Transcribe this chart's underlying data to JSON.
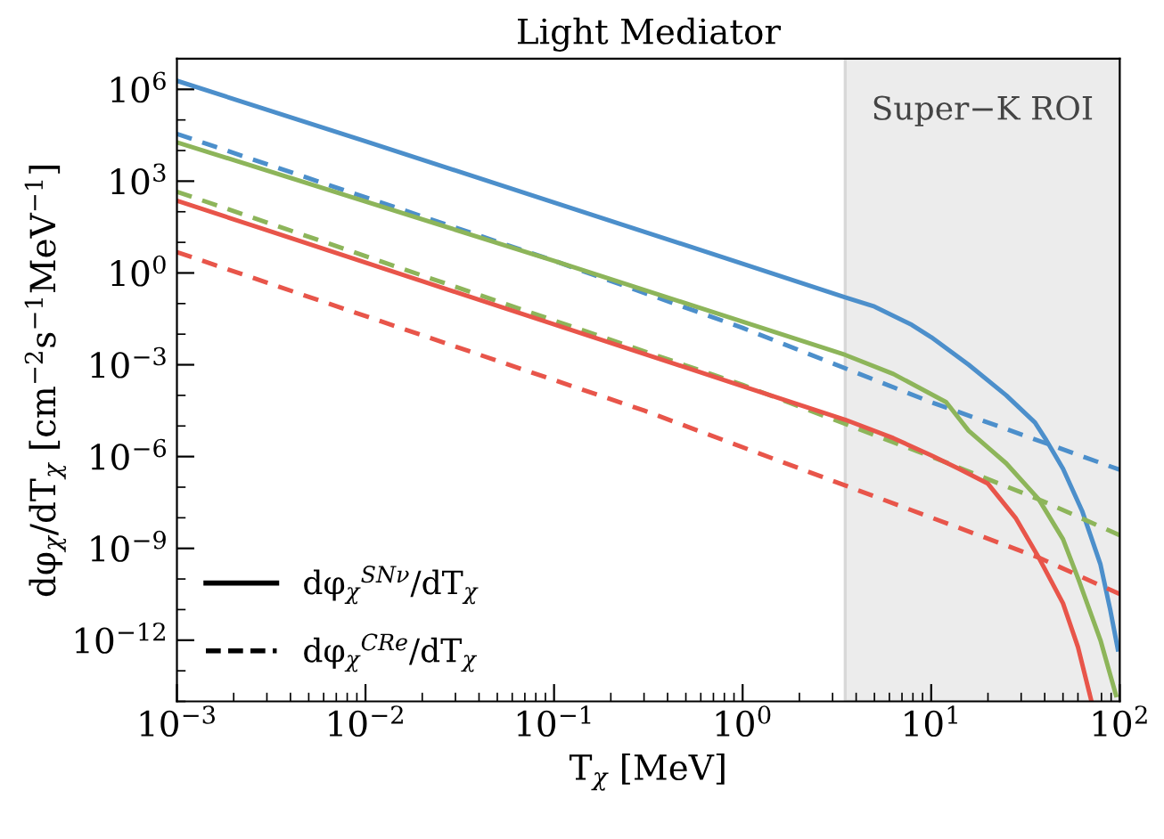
{
  "chart_data": {
    "type": "line",
    "title": "Light Mediator",
    "xlabel": "T$_{χ}$ [MeV]",
    "ylabel": "dφ$_{χ}$/dT$_{χ}$ [cm$^{−2}$s$^{−1}$MeV$^{−1}$]",
    "log": "xy",
    "xlim": [
      0.001,
      100
    ],
    "ylim": [
      1e-14,
      10000000.0
    ],
    "xticks": [
      {
        "value": 0.001,
        "label": "10$^{−3}$"
      },
      {
        "value": 0.01,
        "label": "10$^{−2}$"
      },
      {
        "value": 0.1,
        "label": "10$^{−1}$"
      },
      {
        "value": 1,
        "label": "10$^{0}$"
      },
      {
        "value": 10,
        "label": "10$^{1}$"
      },
      {
        "value": 100,
        "label": "10$^{2}$"
      }
    ],
    "yticks": [
      {
        "value": 1e-12,
        "label": "10$^{−12}$"
      },
      {
        "value": 1e-09,
        "label": "10$^{−9}$"
      },
      {
        "value": 1e-06,
        "label": "10$^{−6}$"
      },
      {
        "value": 0.001,
        "label": "10$^{−3}$"
      },
      {
        "value": 1,
        "label": "10$^{0}$"
      },
      {
        "value": 1000,
        "label": "10$^{3}$"
      },
      {
        "value": 1000000.0,
        "label": "10$^{6}$"
      }
    ],
    "grid": false,
    "marker": "none",
    "bands": [
      {
        "axis": "x",
        "from": 3.5,
        "to": 100,
        "label": "Super−K ROI",
        "color": "#ececec"
      }
    ],
    "annotations": [
      "dφ$_{χ}$$^{SNν}$/dT$_{χ}$",
      "dφ$_{χ}$$^{CRe}$/dT$_{χ}$"
    ],
    "series": [
      {
        "color": "#4c8fcb",
        "line_style": "solid",
        "x": [
          0.001,
          0.01,
          0.1,
          1,
          3.5,
          5,
          7.9,
          10,
          15.8,
          25,
          35.5,
          40.7,
          50,
          63.1,
          79,
          89,
          97.7
        ],
        "values": [
          1900000.0,
          20000.0,
          200,
          2,
          0.16,
          0.08,
          0.02,
          0.008,
          0.001,
          0.0001,
          1.3e-05,
          3.5e-06,
          4e-07,
          1.7e-08,
          3e-10,
          1e-11,
          5e-13
        ]
      },
      {
        "color": "#4c8fcb",
        "line_style": "dashed",
        "x": [
          0.001,
          0.1,
          1,
          10,
          100
        ],
        "values": [
          35000,
          2.5,
          0.016,
          6e-05,
          3.7e-07
        ]
      },
      {
        "color": "#8db55a",
        "line_style": "solid",
        "x": [
          0.001,
          0.1,
          3.5,
          6.3,
          12,
          15.8,
          25,
          37.2,
          50,
          60.3,
          79,
          95.5
        ],
        "values": [
          18600,
          2.5,
          0.0021,
          0.0005,
          6e-05,
          7e-06,
          6e-07,
          4e-08,
          2e-09,
          1e-10,
          1e-12,
          1.6e-14
        ]
      },
      {
        "color": "#8db55a",
        "line_style": "dashed",
        "x": [
          0.001,
          1,
          10,
          37.2,
          100
        ],
        "values": [
          450,
          0.00022,
          1e-06,
          4e-08,
          2.7e-09
        ]
      },
      {
        "color": "#e8554a",
        "line_style": "solid",
        "x": [
          0.001,
          1,
          3.5,
          6.3,
          10,
          14,
          20,
          28,
          37.2,
          50,
          60,
          70.8
        ],
        "values": [
          230,
          0.0002,
          1.6e-05,
          4e-06,
          1.1e-06,
          4e-07,
          1.3e-07,
          1e-08,
          5e-10,
          1.6e-11,
          6e-13,
          1e-14
        ]
      },
      {
        "color": "#e8554a",
        "line_style": "dashed",
        "x": [
          0.001,
          0.3,
          37.2,
          100
        ],
        "values": [
          4.8,
          3.2e-05,
          5e-10,
          3.2e-11
        ]
      }
    ]
  }
}
